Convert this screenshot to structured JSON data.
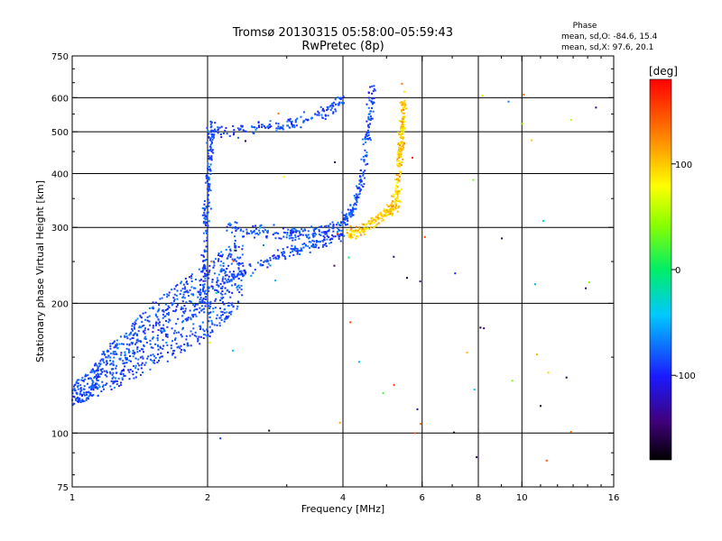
{
  "chart_data": {
    "type": "scatter",
    "title": "Tromsø 20130315 05:58:00–05:59:43",
    "subtitle": "RwPretec (8p)",
    "xlabel": "Frequency [MHz]",
    "ylabel": "Stationary phase Virtual Height [km]",
    "x_scale": "log",
    "y_scale": "log",
    "xlim": [
      1,
      16
    ],
    "ylim": [
      75,
      750
    ],
    "x_ticks": [
      "1",
      "2",
      "4",
      "6",
      "8",
      "10",
      "16"
    ],
    "x_tick_values": [
      1,
      2,
      4,
      6,
      8,
      10,
      16
    ],
    "y_ticks": [
      "75",
      "100",
      "200",
      "300",
      "400",
      "500",
      "600",
      "750"
    ],
    "y_tick_values": [
      75,
      100,
      200,
      300,
      400,
      500,
      600,
      750
    ],
    "grid": true,
    "stats": {
      "heading": "Phase",
      "line_o": "mean, sd,O: -84.6, 15.4",
      "line_x": "mean, sd,X:  97.6, 20.1"
    },
    "colorbar": {
      "label": "[deg]",
      "range": [
        -180,
        180
      ],
      "ticks": [
        "100",
        "0",
        "-100"
      ],
      "tick_values": [
        100,
        0,
        -100
      ]
    },
    "series": [
      {
        "mode": "O",
        "phase_mean": -84.6,
        "phase_sd": 15.4,
        "traces": [
          {
            "part": "low_band",
            "x": [
              1.0,
              1.05,
              1.1,
              1.15,
              1.2,
              1.3,
              1.4,
              1.5,
              1.6,
              1.7,
              1.8,
              1.9,
              2.0,
              2.1,
              2.2,
              2.3,
              2.4
            ],
            "y_low": [
              115,
              118,
              120,
              122,
              125,
              130,
              135,
              140,
              145,
              150,
              155,
              160,
              165,
              175,
              180,
              190,
              200
            ],
            "y_high": [
              130,
              135,
              140,
              150,
              160,
              170,
              185,
              200,
              210,
              220,
              230,
              240,
              250,
              260,
              270,
              280,
              290
            ]
          },
          {
            "part": "f1_trace",
            "x": [
              2.0,
              2.2,
              2.4,
              2.6,
              2.8,
              3.0,
              3.2,
              3.4,
              3.6,
              3.8,
              4.0
            ],
            "y": [
              215,
              225,
              235,
              245,
              255,
              262,
              268,
              272,
              278,
              285,
              292
            ]
          },
          {
            "part": "f2_trace",
            "x": [
              2.2,
              2.4,
              2.6,
              2.8,
              3.0,
              3.2,
              3.4,
              3.6,
              3.8,
              4.0
            ],
            "y": [
              300,
              296,
              294,
              292,
              290,
              290,
              292,
              295,
              300,
              310
            ]
          },
          {
            "part": "vertical_near_2MHz",
            "x": [
              1.95,
              1.97,
              2.0,
              2.02,
              2.05
            ],
            "y": [
              200,
              280,
              360,
              440,
              520
            ]
          },
          {
            "part": "top_arc",
            "x": [
              2.0,
              2.2,
              2.5,
              2.8,
              3.0,
              3.2,
              3.5,
              3.7,
              3.9,
              4.0
            ],
            "y": [
              500,
              505,
              510,
              515,
              520,
              530,
              540,
              560,
              580,
              600
            ]
          },
          {
            "part": "f2_o_cusp",
            "x": [
              4.0,
              4.2,
              4.4,
              4.5,
              4.6,
              4.65
            ],
            "y": [
              310,
              330,
              380,
              450,
              540,
              640
            ]
          }
        ]
      },
      {
        "mode": "X",
        "phase_mean": 97.6,
        "phase_sd": 20.1,
        "traces": [
          {
            "part": "f2_x_trace",
            "x": [
              4.1,
              4.3,
              4.5,
              4.7,
              4.9,
              5.1,
              5.3
            ],
            "y": [
              290,
              295,
              300,
              310,
              320,
              330,
              340
            ]
          },
          {
            "part": "f2_x_cusp",
            "x": [
              5.2,
              5.3,
              5.35,
              5.4,
              5.45,
              5.5
            ],
            "y": [
              340,
              380,
              430,
              480,
              540,
              610
            ]
          }
        ]
      }
    ]
  }
}
